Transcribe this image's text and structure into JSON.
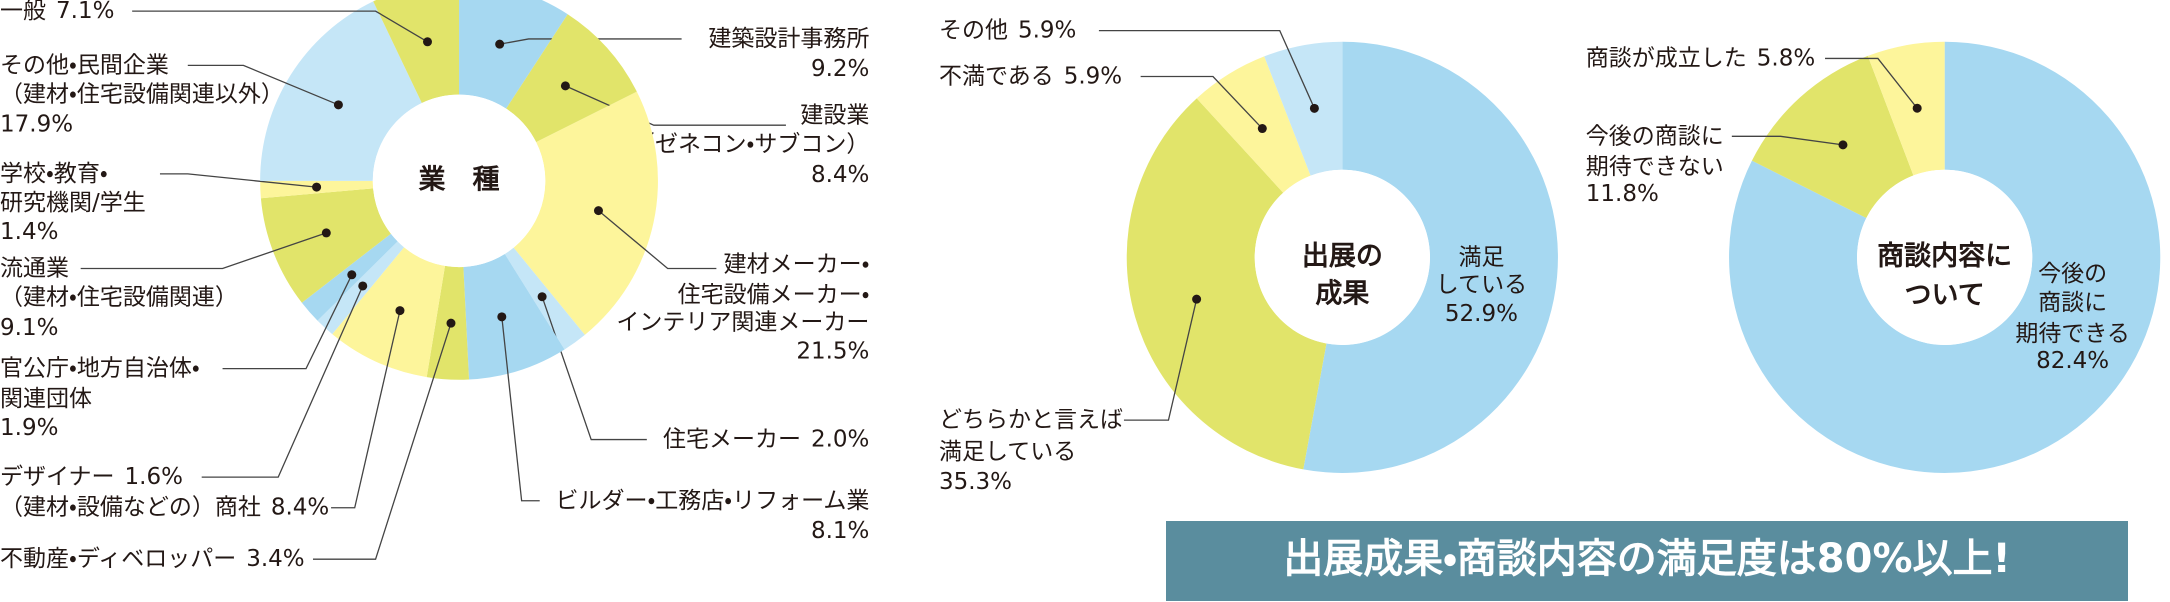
{
  "chart_data": [
    {
      "type": "donut",
      "title": [
        "業　種"
      ],
      "categories": [
        [
          "建築設計事務所"
        ],
        [
          "建設業",
          "（ゼネコン・サブコン）"
        ],
        [
          "建材メーカー・",
          "住宅設備メーカー・",
          "インテリア関連メーカー"
        ],
        [
          "住宅メーカー"
        ],
        [
          "ビルダー・工務店・リフォーム業"
        ],
        [
          "不動産・ディベロッパー"
        ],
        [
          "（建材・設備などの）商社"
        ],
        [
          "デザイナー"
        ],
        [
          "官公庁・地方自治体・",
          "関連団体"
        ],
        [
          "流通業",
          "（建材・住宅設備関連）"
        ],
        [
          "学校・教育・",
          "研究機関/学生"
        ],
        [
          "その他・民間企業",
          "（建材・住宅設備関連以外）"
        ],
        [
          "一般"
        ]
      ],
      "values": [
        9.2,
        8.4,
        21.5,
        2.0,
        8.1,
        3.4,
        8.4,
        1.6,
        1.9,
        9.1,
        1.4,
        17.9,
        7.1
      ],
      "value_labels": [
        "9.2%",
        "8.4%",
        "21.5%",
        "2.0%",
        "8.1%",
        "3.4%",
        "8.4%",
        "1.6%",
        "1.9%",
        "9.1%",
        "1.4%",
        "17.9%",
        "7.1%"
      ],
      "colors": [
        "#a6d8f1",
        "#e1e46a",
        "#fdf59b",
        "#c5e6f7",
        "#a6d8f1",
        "#e1e46a",
        "#fdf59b",
        "#c5e6f7",
        "#a6d8f1",
        "#e1e46a",
        "#fdf59b",
        "#c5e6f7",
        "#e1e46a"
      ]
    },
    {
      "type": "donut",
      "title": [
        "出展の",
        "成果"
      ],
      "categories": [
        [
          "満足",
          "している"
        ],
        [
          "どちらかと言えば",
          "満足している"
        ],
        [
          "不満である"
        ],
        [
          "その他"
        ]
      ],
      "values": [
        52.9,
        35.3,
        5.9,
        5.9
      ],
      "value_labels": [
        "52.9%",
        "35.3%",
        "5.9%",
        "5.9%"
      ],
      "colors": [
        "#a6d8f1",
        "#e1e46a",
        "#fdf59b",
        "#c5e6f7"
      ]
    },
    {
      "type": "donut",
      "title": [
        "商談内容に",
        "ついて"
      ],
      "categories": [
        [
          "今後の",
          "商談に",
          "期待できる"
        ],
        [
          "今後の商談に",
          "期待できない"
        ],
        [
          "商談が成立した"
        ]
      ],
      "values": [
        82.4,
        11.8,
        5.8
      ],
      "value_labels": [
        "82.4%",
        "11.8%",
        "5.8%"
      ],
      "colors": [
        "#a6d8f1",
        "#e1e46a",
        "#fdf59b"
      ]
    }
  ],
  "banner": "出展成果・商談内容の満足度は80%以上!"
}
